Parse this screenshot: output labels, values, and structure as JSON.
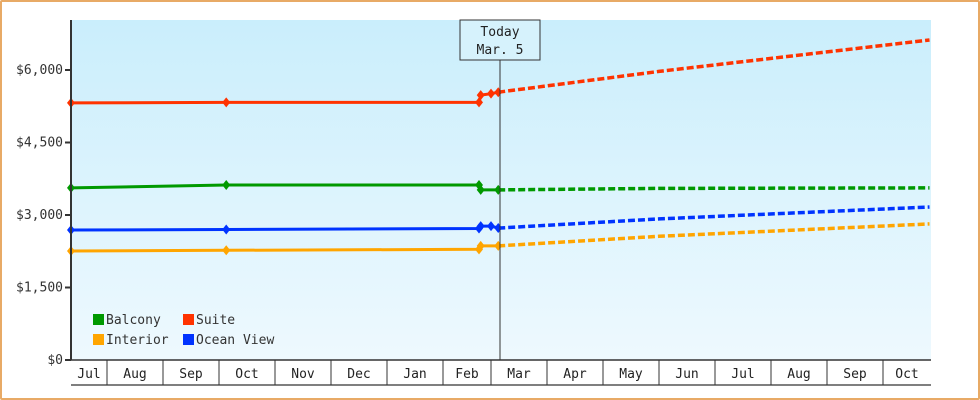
{
  "chart_data": {
    "type": "line",
    "title": "",
    "xlabel": "",
    "ylabel": "",
    "ylim": [
      0,
      7000
    ],
    "y_ticks": [
      {
        "value": 0,
        "label": "$0"
      },
      {
        "value": 1500,
        "label": "$1,500"
      },
      {
        "value": 3000,
        "label": "$3,000"
      },
      {
        "value": 4500,
        "label": "$4,500"
      },
      {
        "value": 6000,
        "label": "$6,000"
      }
    ],
    "x_ticks": [
      "Jul",
      "Aug",
      "Sep",
      "Oct",
      "Nov",
      "Dec",
      "Jan",
      "Feb",
      "Mar",
      "Apr",
      "May",
      "Jun",
      "Jul",
      "Aug",
      "Sep",
      "Oct"
    ],
    "grid": false,
    "legend_position": "bottom-left inside",
    "annotation": {
      "line1": "Today",
      "line2": "Mar. 5"
    },
    "colors": {
      "Balcony": "#009900",
      "Suite": "#ff3300",
      "Interior": "#ffa500",
      "Ocean View": "#0033ff"
    },
    "series": [
      {
        "name": "Suite",
        "historical": [
          {
            "x": "Jul 1",
            "y": 5320
          },
          {
            "x": "Oct 5",
            "y": 5330
          },
          {
            "x": "Feb 22",
            "y": 5330
          },
          {
            "x": "Feb 23",
            "y": 5480
          },
          {
            "x": "Mar 1",
            "y": 5510
          },
          {
            "x": "Mar 5",
            "y": 5540
          }
        ],
        "forecast": [
          {
            "x": "Mar 5",
            "y": 5540
          },
          {
            "x": "Jun 1",
            "y": 5970
          },
          {
            "x": "Oct 31",
            "y": 6620
          }
        ]
      },
      {
        "name": "Balcony",
        "historical": [
          {
            "x": "Jul 1",
            "y": 3560
          },
          {
            "x": "Oct 5",
            "y": 3620
          },
          {
            "x": "Feb 22",
            "y": 3620
          },
          {
            "x": "Feb 23",
            "y": 3520
          },
          {
            "x": "Mar 5",
            "y": 3520
          }
        ],
        "forecast": [
          {
            "x": "Mar 5",
            "y": 3520
          },
          {
            "x": "Jun 1",
            "y": 3550
          },
          {
            "x": "Oct 31",
            "y": 3560
          }
        ]
      },
      {
        "name": "Ocean View",
        "historical": [
          {
            "x": "Jul 1",
            "y": 2690
          },
          {
            "x": "Oct 5",
            "y": 2700
          },
          {
            "x": "Feb 22",
            "y": 2720
          },
          {
            "x": "Feb 23",
            "y": 2770
          },
          {
            "x": "Mar 1",
            "y": 2770
          },
          {
            "x": "Mar 5",
            "y": 2730
          }
        ],
        "forecast": [
          {
            "x": "Mar 5",
            "y": 2730
          },
          {
            "x": "Jun 1",
            "y": 2920
          },
          {
            "x": "Oct 31",
            "y": 3165
          }
        ]
      },
      {
        "name": "Interior",
        "historical": [
          {
            "x": "Jul 1",
            "y": 2255
          },
          {
            "x": "Oct 5",
            "y": 2270
          },
          {
            "x": "Feb 22",
            "y": 2290
          },
          {
            "x": "Feb 23",
            "y": 2360
          },
          {
            "x": "Mar 5",
            "y": 2360
          }
        ],
        "forecast": [
          {
            "x": "Mar 5",
            "y": 2360
          },
          {
            "x": "Jun 1",
            "y": 2560
          },
          {
            "x": "Oct 31",
            "y": 2815
          }
        ]
      }
    ]
  },
  "legend": [
    {
      "label": "Balcony",
      "color": "#009900"
    },
    {
      "label": "Suite",
      "color": "#ff3300"
    },
    {
      "label": "Interior",
      "color": "#ffa500"
    },
    {
      "label": "Ocean View",
      "color": "#0033ff"
    }
  ]
}
